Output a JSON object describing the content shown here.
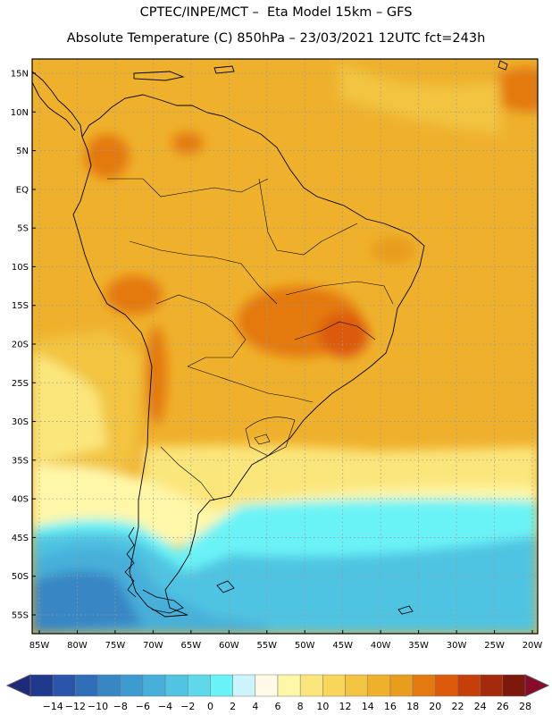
{
  "title_line1": "CPTEC/INPE/MCT –  Eta Model 15km – GFS",
  "title_line2": "Absolute Temperature (C) 850hPa – 23/03/2021 12UTC fct=243h",
  "lat_labels": [
    "15N",
    "10N",
    "5N",
    "EQ",
    "5S",
    "10S",
    "15S",
    "20S",
    "25S",
    "30S",
    "35S",
    "40S",
    "45S",
    "50S",
    "55S"
  ],
  "lon_labels": [
    "85W",
    "80W",
    "75W",
    "70W",
    "65W",
    "60W",
    "55W",
    "50W",
    "45W",
    "40W",
    "35W",
    "30W",
    "25W",
    "20W"
  ],
  "colorbar": {
    "labels": [
      "-14",
      "-12",
      "-10",
      "-8",
      "-6",
      "-4",
      "-2",
      "0",
      "2",
      "4",
      "6",
      "8",
      "10",
      "12",
      "14",
      "16",
      "18",
      "20",
      "22",
      "24",
      "26",
      "28"
    ],
    "colors": [
      "#1f3a8a",
      "#2a55a8",
      "#2f6fb8",
      "#3886c4",
      "#3d9bcf",
      "#46b0da",
      "#50c4e2",
      "#5fd9ea",
      "#6af3f7",
      "#cdf3fb",
      "#fffbe6",
      "#fff7a8",
      "#fbe67c",
      "#f8d65a",
      "#f2c440",
      "#efb12c",
      "#e99d1d",
      "#e4790f",
      "#dc5a0a",
      "#c63e08",
      "#a52a0c",
      "#7b1a0c"
    ],
    "under_color": "#1d2b7a",
    "over_color": "#8a0a2a"
  },
  "colors": {
    "warm_orange": "#efb12c",
    "hot_orange": "#e4790f",
    "yellow": "#fbe67c",
    "light_yellow": "#fff7a8",
    "cyan": "#6af3f7",
    "sky": "#46b0da",
    "blue": "#2f6fb8"
  }
}
